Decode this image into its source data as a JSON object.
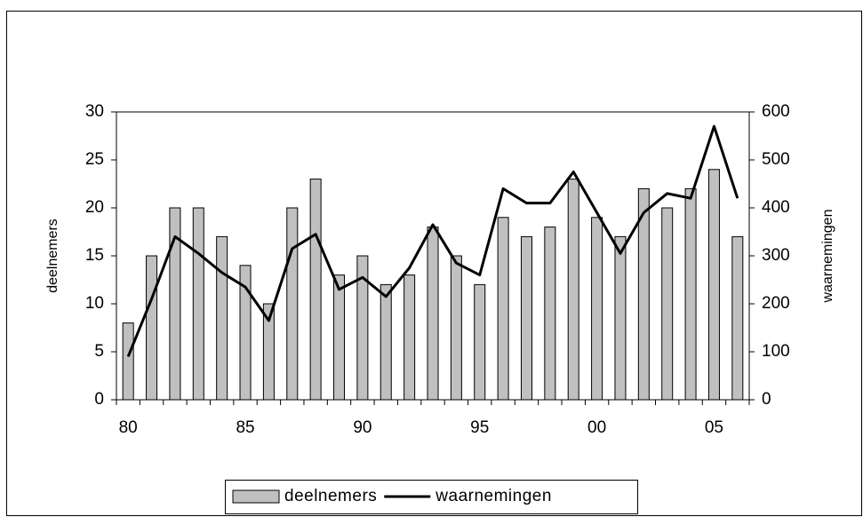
{
  "chart_data": {
    "type": "combo",
    "categories": [
      "80",
      null,
      null,
      null,
      null,
      "85",
      null,
      null,
      null,
      null,
      "90",
      null,
      null,
      null,
      null,
      "95",
      null,
      null,
      null,
      null,
      "00",
      null,
      null,
      null,
      null,
      "05",
      null
    ],
    "series": [
      {
        "name": "deelnemers",
        "type": "bar",
        "color": "#c0c0c0",
        "values": [
          8,
          15,
          20,
          20,
          17,
          14,
          10,
          20,
          23,
          13,
          15,
          12,
          13,
          18,
          15,
          12,
          19,
          17,
          18,
          23,
          19,
          17,
          22,
          20,
          22,
          24,
          17
        ]
      },
      {
        "name": "waarnemingen",
        "type": "line",
        "axis": "y2",
        "color": "#000000",
        "values": [
          90,
          210,
          340,
          305,
          265,
          235,
          165,
          315,
          345,
          230,
          255,
          215,
          275,
          365,
          285,
          260,
          440,
          410,
          410,
          475,
          390,
          305,
          390,
          430,
          420,
          570,
          420
        ]
      }
    ],
    "ylabel": "deelnemers",
    "y2label": "waarnemingen",
    "ylim": [
      0,
      30
    ],
    "yticks": [
      0,
      5,
      10,
      15,
      20,
      25,
      30
    ],
    "y2lim": [
      0,
      600
    ],
    "y2ticks": [
      0,
      100,
      200,
      300,
      400,
      500,
      600
    ],
    "grid": false,
    "legend": "bottom"
  }
}
